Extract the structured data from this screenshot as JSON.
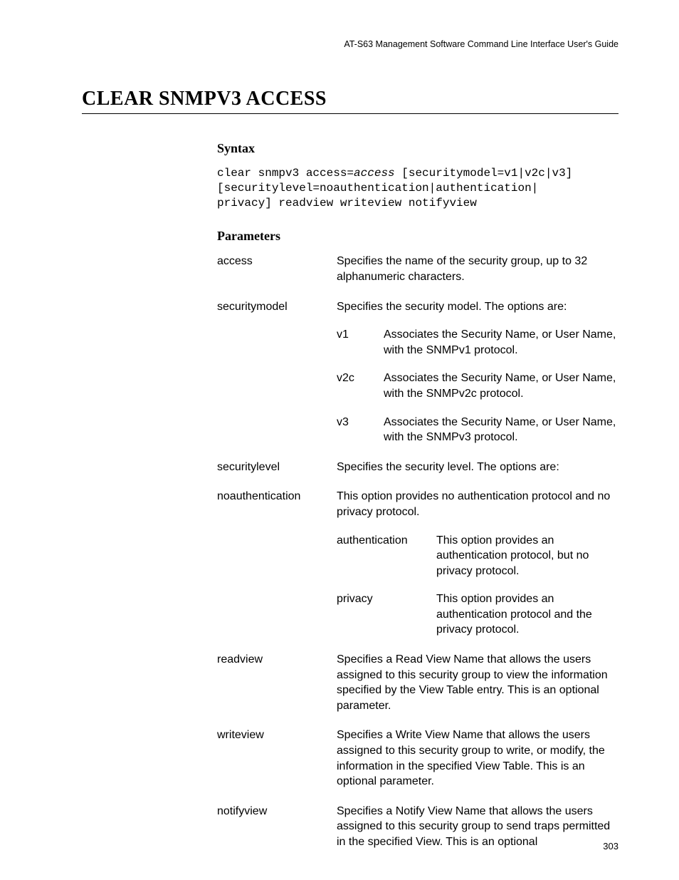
{
  "header": {
    "running_title": "AT-S63 Management Software Command Line Interface User's Guide"
  },
  "title": "CLEAR SNMPV3 ACCESS",
  "syntax": {
    "heading": "Syntax",
    "line1_pre": "clear snmpv3 access=",
    "line1_arg": "access",
    "line1_post": " [securitymodel=v1|v2c|v3]",
    "line2": "[securitylevel=noauthentication|authentication|",
    "line3": "privacy] readview writeview notifyview"
  },
  "parameters": {
    "heading": "Parameters",
    "rows": [
      {
        "name": "access",
        "desc": "Specifies the name of the security group, up to 32 alphanumeric characters."
      },
      {
        "name": "securitymodel",
        "desc": "Specifies the security model. The options are:",
        "subs": [
          {
            "key": "v1",
            "val": "Associates the Security Name, or User Name, with the SNMPv1 protocol."
          },
          {
            "key": "v2c",
            "val": "Associates the Security Name, or User Name, with the SNMPv2c protocol."
          },
          {
            "key": "v3",
            "val": "Associates the Security Name, or User Name, with the SNMPv3 protocol."
          }
        ]
      },
      {
        "name": "securitylevel",
        "desc": "Specifies the security level. The options are:"
      },
      {
        "name": "noauthentication",
        "desc": "This option provides no authentication protocol and no privacy protocol.",
        "subs_wide": [
          {
            "key": "authentication",
            "val": "This option provides an authentication protocol, but no privacy protocol."
          },
          {
            "key": "privacy",
            "val": "This option provides an authentication protocol and the privacy protocol."
          }
        ]
      },
      {
        "name": "readview",
        "desc": "Specifies a Read View Name that allows the users assigned to this security group to view the information specified by the View Table entry. This is an optional parameter."
      },
      {
        "name": "writeview",
        "desc": "Specifies a Write View Name that allows the users assigned to this security group to write, or modify, the information in the specified View Table. This is an optional parameter."
      },
      {
        "name": "notifyview",
        "desc": "Specifies a Notify View Name that allows the users assigned to this security group to send traps permitted in the specified View. This is an optional"
      }
    ]
  },
  "page_number": "303"
}
